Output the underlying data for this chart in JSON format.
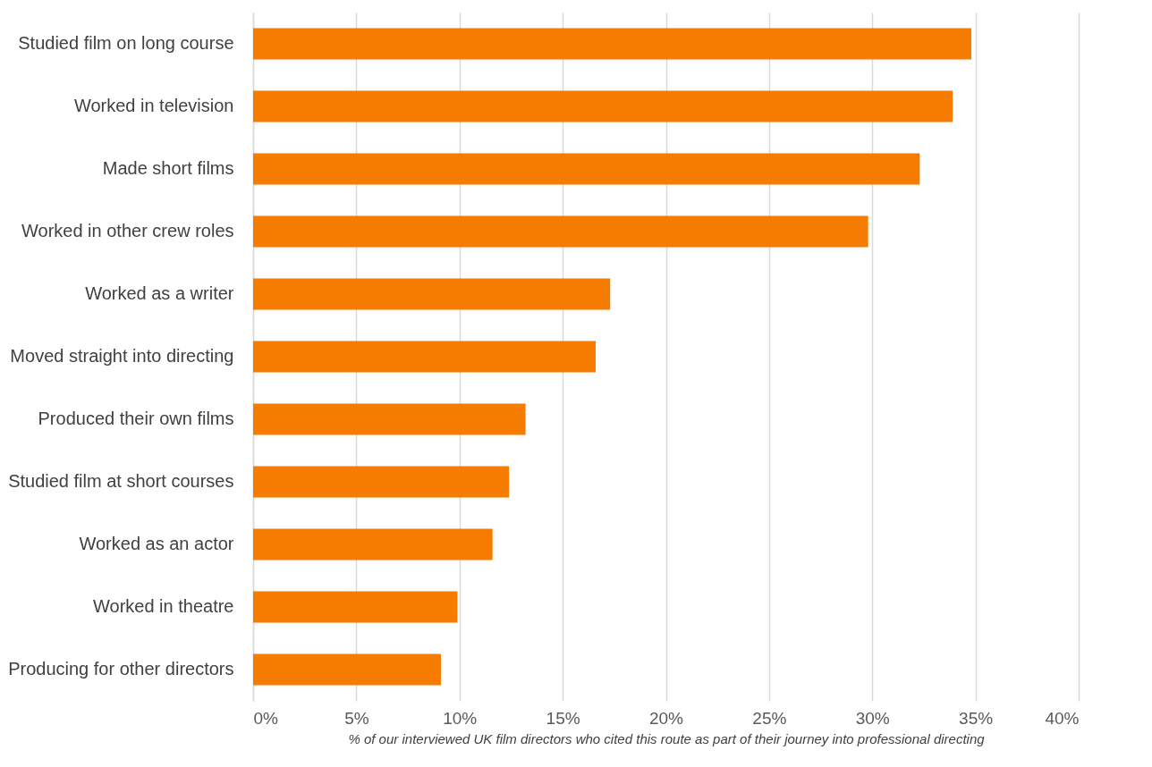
{
  "chart_data": {
    "type": "bar",
    "orientation": "horizontal",
    "categories": [
      "Studied film on long course",
      "Worked in television",
      "Made short films",
      "Worked in other crew roles",
      "Worked as a writer",
      "Moved straight into directing",
      "Produced their own films",
      "Studied film at short courses",
      "Worked as an actor",
      "Worked in theatre",
      "Producing for other directors"
    ],
    "values": [
      34.8,
      33.9,
      32.3,
      29.8,
      17.3,
      16.6,
      13.2,
      12.4,
      11.6,
      9.9,
      9.1
    ],
    "color": "#f57c00",
    "xlim": [
      0,
      40
    ],
    "xticks": [
      {
        "value": 0,
        "label": "0%"
      },
      {
        "value": 5,
        "label": "5%"
      },
      {
        "value": 10,
        "label": "10%"
      },
      {
        "value": 15,
        "label": "15%"
      },
      {
        "value": 20,
        "label": "20%"
      },
      {
        "value": 25,
        "label": "25%"
      },
      {
        "value": 30,
        "label": "30%"
      },
      {
        "value": 35,
        "label": "35%"
      },
      {
        "value": 40,
        "label": "40%"
      }
    ],
    "xlabel": "% of our interviewed UK film directors who cited this route as part of their journey into professional directing",
    "grid": "x"
  }
}
